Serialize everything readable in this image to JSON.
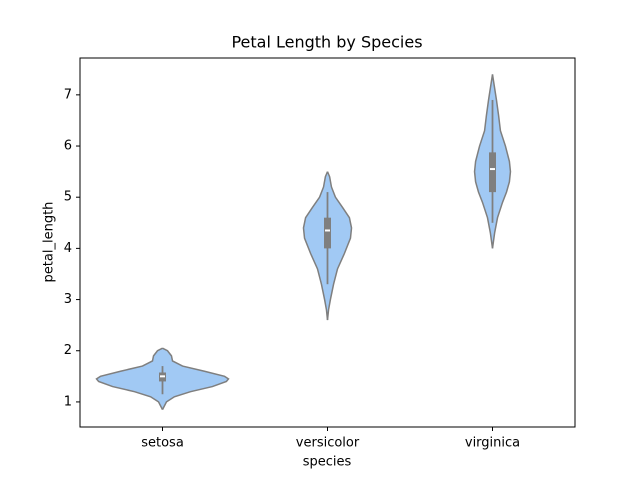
{
  "chart_data": {
    "type": "violin",
    "title": "Petal Length by Species",
    "x_label": "species",
    "y_label": "petal_length",
    "categories": [
      "setosa",
      "versicolor",
      "virginica"
    ],
    "color": "#a1c9f4",
    "edge_color": "#7f7f7f",
    "ylim": [
      0.51,
      7.72
    ],
    "yticks": [
      1,
      2,
      3,
      4,
      5,
      6,
      7
    ],
    "violins": [
      {
        "kde_y": [
          0.85,
          1.0,
          1.1,
          1.2,
          1.3,
          1.4,
          1.45,
          1.5,
          1.6,
          1.7,
          1.8,
          1.9,
          2.0,
          2.05
        ],
        "density": [
          0,
          0.15,
          0.45,
          1.06,
          1.89,
          2.42,
          2.5,
          2.35,
          1.59,
          0.76,
          0.38,
          0.34,
          0.19,
          0
        ],
        "whisker": [
          1.15,
          1.7
        ],
        "box": [
          1.4,
          1.575
        ],
        "median": 1.5
      },
      {
        "kde_y": [
          2.6,
          2.8,
          3.0,
          3.3,
          3.6,
          3.9,
          4.2,
          4.4,
          4.6,
          4.8,
          5.0,
          5.2,
          5.4,
          5.5
        ],
        "density": [
          0,
          0.04,
          0.11,
          0.23,
          0.38,
          0.64,
          0.87,
          0.91,
          0.83,
          0.57,
          0.3,
          0.15,
          0.08,
          0
        ],
        "whisker": [
          3.3,
          5.1
        ],
        "box": [
          4.0,
          4.6
        ],
        "median": 4.35
      },
      {
        "kde_y": [
          4.0,
          4.3,
          4.6,
          4.9,
          5.1,
          5.3,
          5.5,
          5.7,
          6.0,
          6.3,
          6.6,
          6.9,
          7.2,
          7.4
        ],
        "density": [
          0,
          0.08,
          0.19,
          0.38,
          0.53,
          0.64,
          0.68,
          0.64,
          0.49,
          0.3,
          0.23,
          0.15,
          0.06,
          0
        ],
        "whisker": [
          4.5,
          6.9
        ],
        "box": [
          5.1,
          5.875
        ],
        "median": 5.55
      }
    ]
  }
}
